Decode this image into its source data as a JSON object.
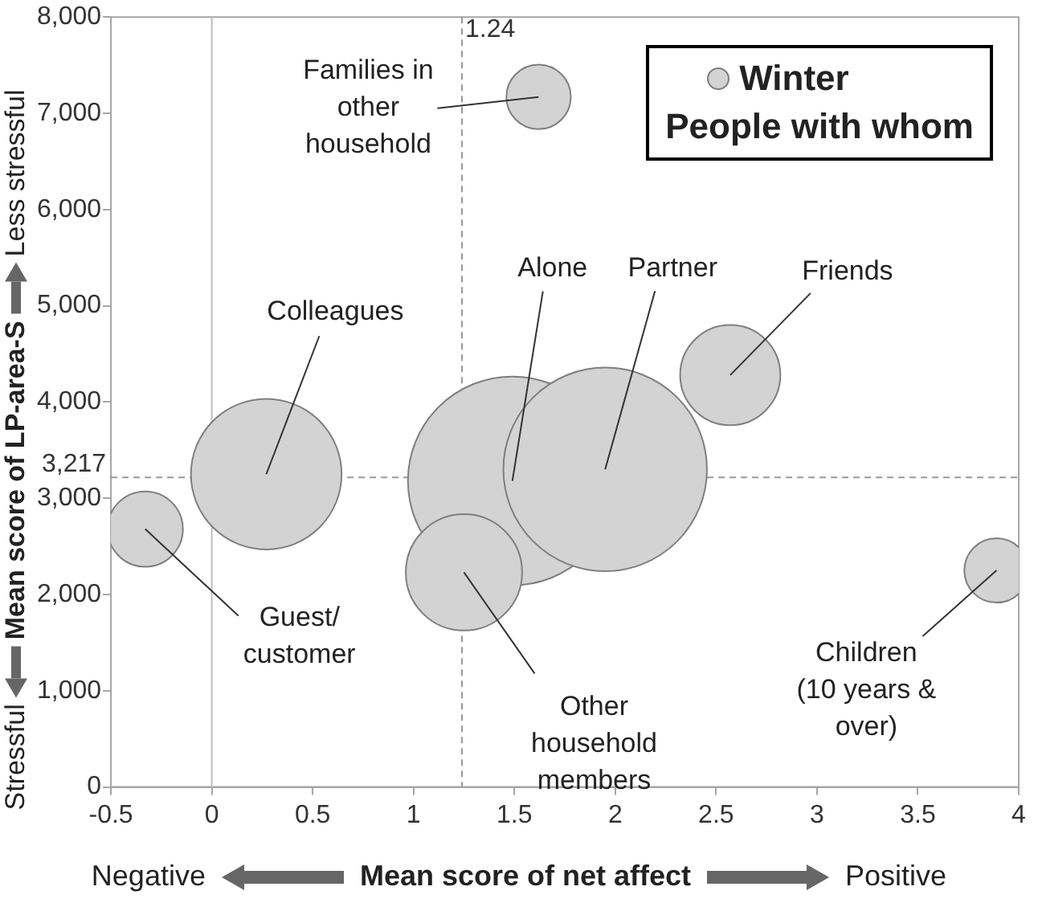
{
  "chart_data": {
    "type": "bubble",
    "xlabel": "Mean score of net affect",
    "ylabel": "Mean score of LP-area-S",
    "legend_title": "People with whom",
    "x": [
      1.62,
      0.27,
      1.49,
      1.95,
      2.57,
      -0.33,
      1.25,
      3.89
    ],
    "series": [
      {
        "name": "Winter",
        "color": "#d3d3d3",
        "values": [
          7170,
          3250,
          3180,
          3300,
          4280,
          2680,
          2230,
          2250
        ],
        "sizes": [
          0.095,
          0.52,
          1,
          0.95,
          0.23,
          0.13,
          0.31,
          0.095
        ]
      }
    ],
    "xlim": [
      -0.5,
      4
    ],
    "xticks": [
      -0.5,
      0,
      0.5,
      1,
      1.5,
      2,
      2.5,
      3,
      3.5,
      4
    ],
    "ylim": [
      0,
      8000
    ],
    "yticks": [
      {
        "value": 0,
        "label": "0"
      },
      {
        "value": 1000,
        "label": "1,000"
      },
      {
        "value": 2000,
        "label": "2,000"
      },
      {
        "value": 3000,
        "label": "3,000"
      },
      {
        "value": 4000,
        "label": "4,000"
      },
      {
        "value": 5000,
        "label": "5,000"
      },
      {
        "value": 6000,
        "label": "6,000"
      },
      {
        "value": 7000,
        "label": "7,000"
      },
      {
        "value": 8000,
        "label": "8,000"
      }
    ],
    "ref_lines": [
      {
        "axis": "x",
        "value": 1.24,
        "label": "1.24",
        "line_style": "dashed"
      },
      {
        "axis": "y",
        "value": 3217,
        "label": "3,217",
        "line_style": "dashed"
      },
      {
        "axis": "x",
        "value": 0,
        "line_style": "solid"
      }
    ],
    "annotations": [
      {
        "text": "Families in\nother\nhousehold",
        "x": 1.62,
        "y": 7170
      },
      {
        "text": "Colleagues",
        "x": 0.27,
        "y": 3250
      },
      {
        "text": "Alone",
        "x": 1.49,
        "y": 3180
      },
      {
        "text": "Partner",
        "x": 1.95,
        "y": 3300
      },
      {
        "text": "Friends",
        "x": 2.57,
        "y": 4280
      },
      {
        "text": "Guest/\ncustomer",
        "x": -0.33,
        "y": 2680
      },
      {
        "text": "Other\nhousehold\nmembers",
        "x": 1.25,
        "y": 2230
      },
      {
        "text": "Children\n(10 years &\nover)",
        "x": 3.89,
        "y": 2250
      },
      "Stressful",
      "Less stressful",
      "Negative",
      "Positive"
    ],
    "grid": false,
    "legend": "top right"
  }
}
